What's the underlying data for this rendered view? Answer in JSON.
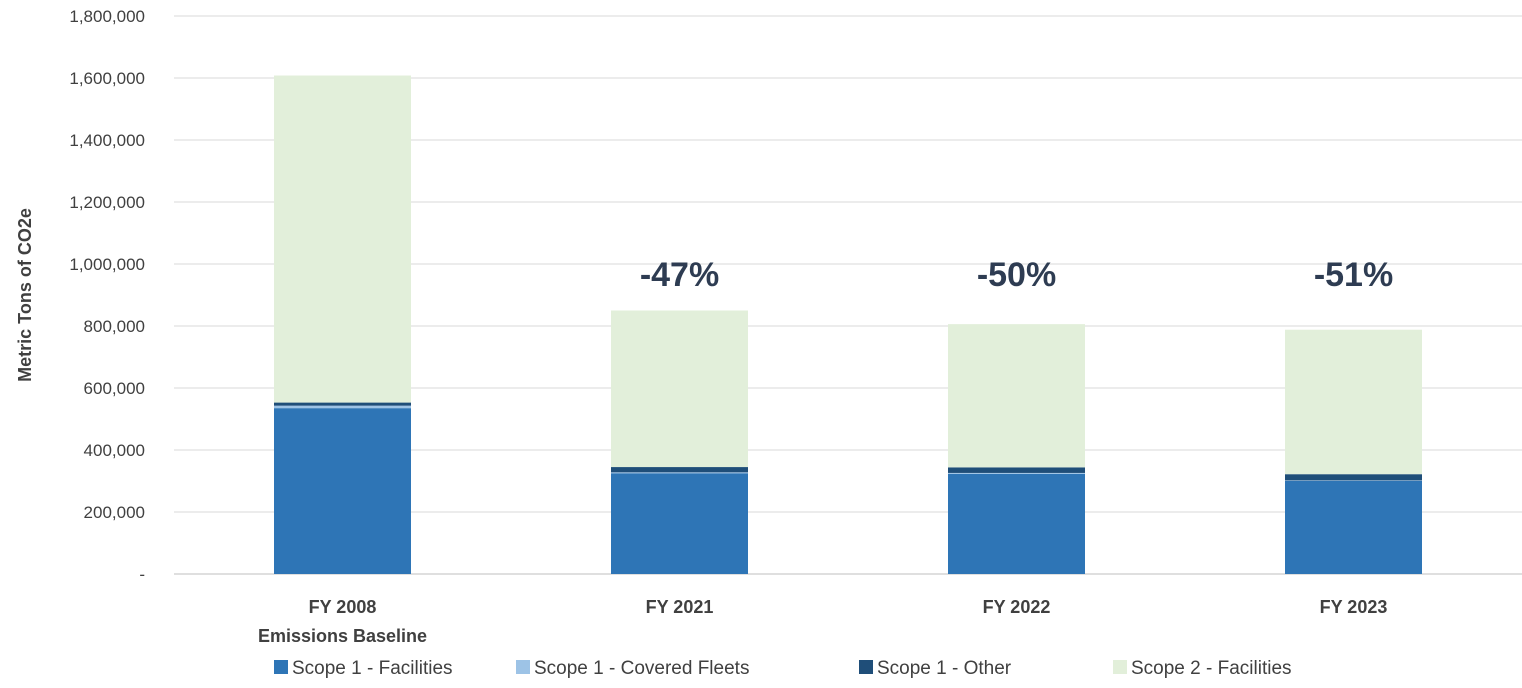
{
  "chart_data": {
    "type": "bar",
    "stacked": true,
    "ylabel": "Metric Tons of CO2e",
    "xlabel": "",
    "ylim": [
      0,
      1800000
    ],
    "yticks": [
      0,
      200000,
      400000,
      600000,
      800000,
      1000000,
      1200000,
      1400000,
      1600000,
      1800000
    ],
    "ytick_labels": [
      "-",
      "200,000",
      "400,000",
      "600,000",
      "800,000",
      "1,000,000",
      "1,200,000",
      "1,400,000",
      "1,600,000",
      "1,800,000"
    ],
    "grid": true,
    "legend_position": "bottom",
    "categories": [
      "FY 2008",
      "FY 2021",
      "FY 2022",
      "FY 2023"
    ],
    "category_sublabels": [
      "Emissions Baseline",
      "",
      "",
      ""
    ],
    "series": [
      {
        "name": "Scope 1 - Facilities",
        "color": "#2e75b6",
        "values": [
          535000,
          325000,
          323000,
          300000
        ]
      },
      {
        "name": "Scope 1 - Covered Fleets",
        "color": "#9dc3e6",
        "values": [
          8000,
          3000,
          3000,
          2000
        ]
      },
      {
        "name": "Scope 1 - Other",
        "color": "#1f4e79",
        "values": [
          10000,
          17000,
          18000,
          20000
        ]
      },
      {
        "name": "Scope 2 - Facilities",
        "color": "#e2efda",
        "values": [
          1055000,
          505000,
          462000,
          466000
        ]
      }
    ],
    "annotations": [
      "",
      "-47%",
      "-50%",
      "-51%"
    ]
  }
}
